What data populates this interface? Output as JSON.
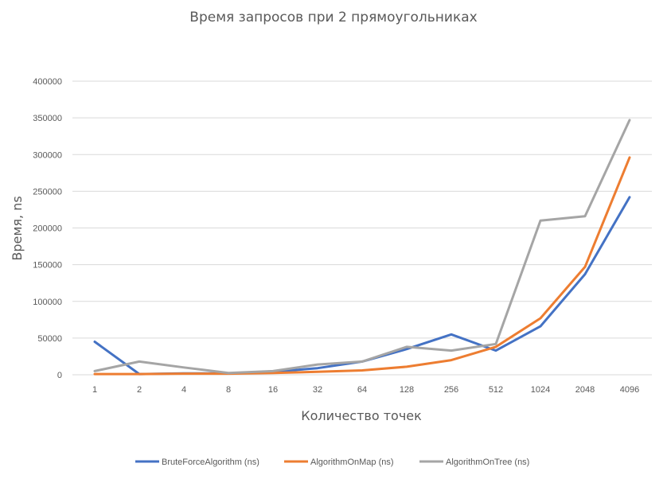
{
  "chart_data": {
    "type": "line",
    "title": "Время запросов при 2 прямоугольниках",
    "xlabel": "Количество точек",
    "ylabel": "Время, ns",
    "categories": [
      "1",
      "2",
      "4",
      "8",
      "16",
      "32",
      "64",
      "128",
      "256",
      "512",
      "1024",
      "2048",
      "4096"
    ],
    "ylim": [
      0,
      400000
    ],
    "yticks": [
      "0",
      "50000",
      "100000",
      "150000",
      "200000",
      "250000",
      "300000",
      "350000",
      "400000"
    ],
    "grid": "horizontal",
    "legend_position": "bottom",
    "series": [
      {
        "name": "BruteForceAlgorithm (ns)",
        "color": "#4472c4",
        "values": [
          45000,
          1000,
          2000,
          2000,
          4000,
          9000,
          18000,
          35000,
          55000,
          33000,
          66000,
          137000,
          242000
        ]
      },
      {
        "name": "AlgorithmOnMap (ns)",
        "color": "#ed7d31",
        "values": [
          1000,
          1000,
          1500,
          1500,
          2500,
          4000,
          6000,
          11000,
          20000,
          38000,
          77000,
          147000,
          296000
        ]
      },
      {
        "name": "AlgorithmOnTree (ns)",
        "color": "#a5a5a5",
        "values": [
          5000,
          18000,
          10000,
          2500,
          5000,
          14000,
          18000,
          38000,
          33000,
          42000,
          210000,
          216000,
          347000
        ]
      }
    ]
  }
}
